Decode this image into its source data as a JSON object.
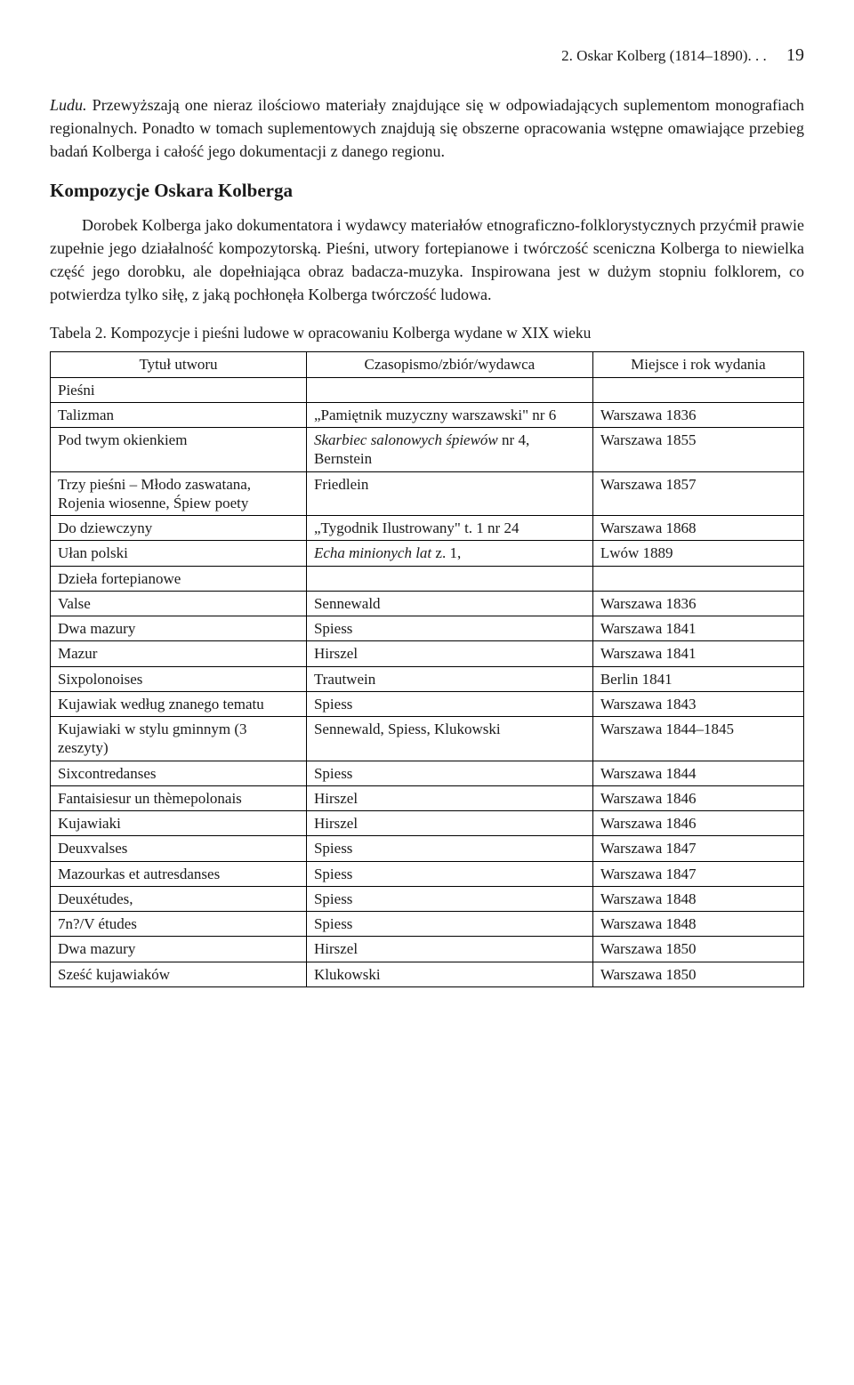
{
  "page": {
    "running_head": "2. Oskar Kolberg (1814–1890). . .",
    "page_number": "19"
  },
  "para1_leadword": "Ludu.",
  "para1_rest": " Przewyższają one nieraz ilościowo materiały znajdujące się w odpowiadających suplementom monografiach regionalnych. Ponadto w tomach suplementowych znajdują się obszerne opracowania wstępne omawiające przebieg badań Kolberga i całość jego dokumentacji z danego regionu.",
  "section_heading": "Kompozycje Oskara Kolberga",
  "para2": "Dorobek Kolberga jako dokumentatora i wydawcy materiałów etnograficzno-folklorystycznych przyćmił prawie zupełnie jego działalność kompozytorską. Pieśni, utwory fortepianowe i twórczość sceniczna Kolberga to niewielka część jego dorobku, ale dopełniająca obraz badacza-muzyka. Inspirowana jest w dużym stopniu folklorem, co potwierdza tylko siłę, z jaką pochłonęła Kolberga twórczość ludowa.",
  "table": {
    "caption": "Tabela 2. Kompozycje i pieśni ludowe w opracowaniu Kolberga wydane w XIX wieku",
    "headers": {
      "title": "Tytuł utworu",
      "publication": "Czasopismo/zbiór/wydawca",
      "place_year": "Miejsce i rok wydania"
    },
    "rows": [
      {
        "type": "section",
        "title": "Pieśni"
      },
      {
        "title": "Talizman",
        "pub_plain": "„Pamiętnik muzyczny warszawski\" nr 6",
        "place": "Warszawa 1836"
      },
      {
        "title": "Pod twym okienkiem",
        "pub_ital": "Skarbiec salonowych śpiewów",
        "pub_rest": " nr 4, Bernstein",
        "place": "Warszawa 1855"
      },
      {
        "title": "Trzy pieśni – Młodo zaswatana, Rojenia wiosenne, Śpiew poety",
        "pub_plain": "Friedlein",
        "place": "Warszawa 1857"
      },
      {
        "title": "Do dziewczyny",
        "pub_plain": "„Tygodnik Ilustrowany\" t. 1 nr 24",
        "place": "Warszawa 1868"
      },
      {
        "title": "Ułan polski",
        "pub_ital": "Echa minionych lat",
        "pub_rest": " z. 1,",
        "place": "Lwów 1889"
      },
      {
        "type": "section",
        "title": "Dzieła fortepianowe"
      },
      {
        "title": "Valse",
        "pub_plain": "Sennewald",
        "place": "Warszawa 1836"
      },
      {
        "title": "Dwa mazury",
        "pub_plain": "Spiess",
        "place": "Warszawa 1841"
      },
      {
        "title": "Mazur",
        "pub_plain": "Hirszel",
        "place": "Warszawa 1841"
      },
      {
        "title": "Sixpolonoises",
        "pub_plain": "Trautwein",
        "place": "Berlin 1841"
      },
      {
        "title": "Kujawiak według znanego tematu",
        "pub_plain": "Spiess",
        "place": "Warszawa 1843"
      },
      {
        "title": "Kujawiaki w stylu gminnym (3 zeszyty)",
        "pub_plain": "Sennewald, Spiess, Klukowski",
        "place": "Warszawa 1844–1845"
      },
      {
        "title": "Sixcontredanses",
        "pub_plain": "Spiess",
        "place": "Warszawa 1844"
      },
      {
        "title": "Fantaisiesur un thèmepolonais",
        "pub_plain": "Hirszel",
        "place": "Warszawa 1846"
      },
      {
        "title": "Kujawiaki",
        "pub_plain": "Hirszel",
        "place": "Warszawa 1846"
      },
      {
        "title": "Deuxvalses",
        "pub_plain": "Spiess",
        "place": "Warszawa 1847"
      },
      {
        "title": "Mazourkas et autresdanses",
        "pub_plain": "Spiess",
        "place": "Warszawa 1847"
      },
      {
        "title": "Deuxétudes,",
        "pub_plain": "Spiess",
        "place": "Warszawa 1848"
      },
      {
        "title": "7n?/V études",
        "pub_plain": "Spiess",
        "place": "Warszawa 1848"
      },
      {
        "title": "Dwa mazury",
        "pub_plain": "Hirszel",
        "place": "Warszawa 1850"
      },
      {
        "title": "Sześć kujawiaków",
        "pub_plain": "Klukowski",
        "place": "Warszawa 1850"
      }
    ]
  }
}
